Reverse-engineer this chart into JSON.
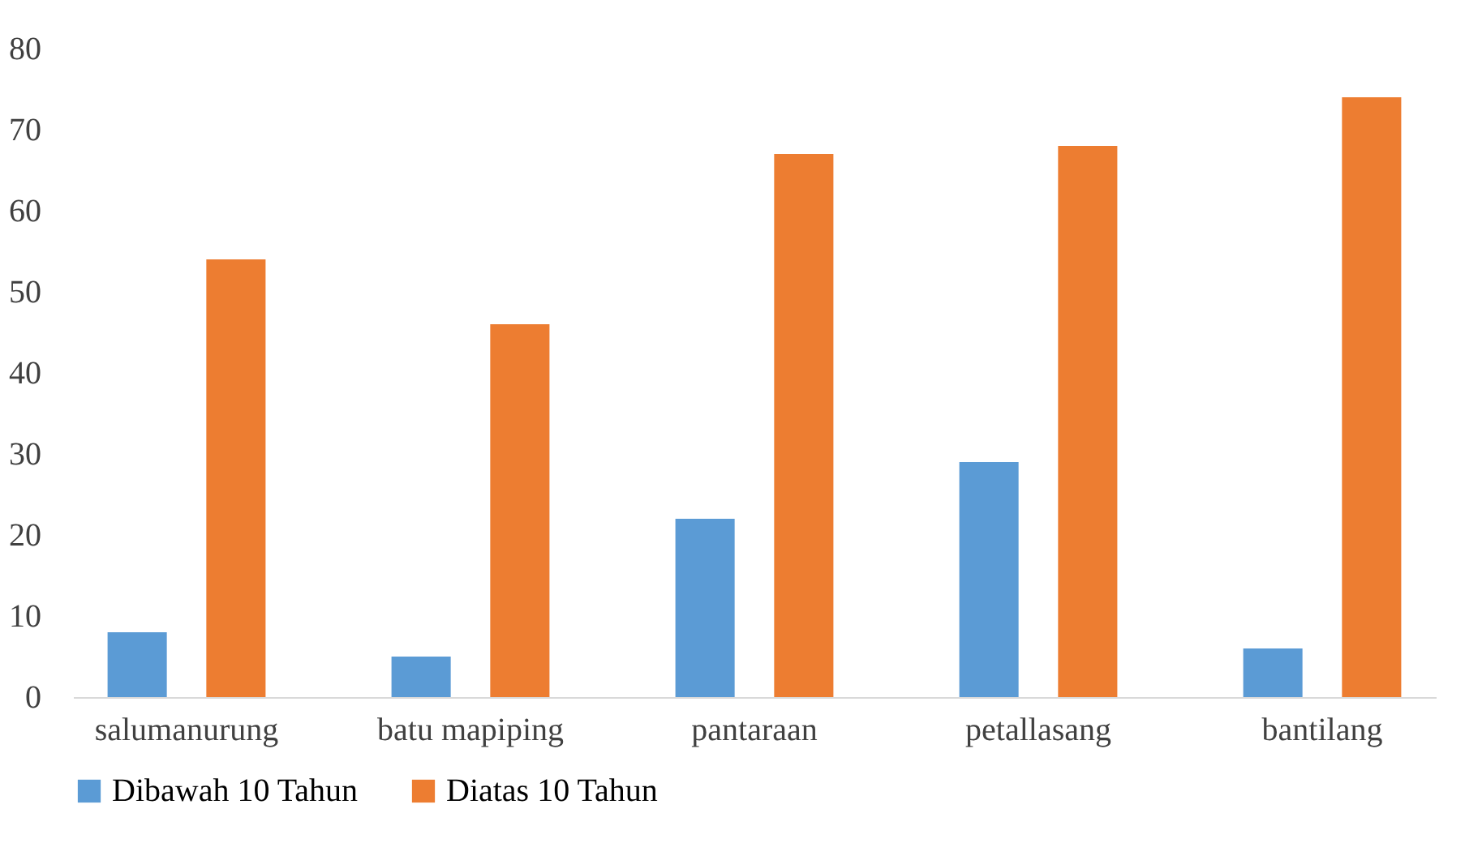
{
  "chart_data": {
    "type": "bar",
    "categories": [
      "salumanurung",
      "batu mapiping",
      "pantaraan",
      "petallasang",
      "bantilang"
    ],
    "series": [
      {
        "name": "Dibawah 10 Tahun",
        "color": "#5b9bd5",
        "values": [
          8,
          5,
          22,
          29,
          6
        ]
      },
      {
        "name": "Diatas 10 Tahun",
        "color": "#ed7d31",
        "values": [
          54,
          46,
          67,
          68,
          74
        ]
      }
    ],
    "ylim": [
      0,
      80
    ],
    "yticks": [
      0,
      10,
      20,
      30,
      40,
      50,
      60,
      70,
      80
    ],
    "grid": false,
    "legend": "bottom"
  }
}
